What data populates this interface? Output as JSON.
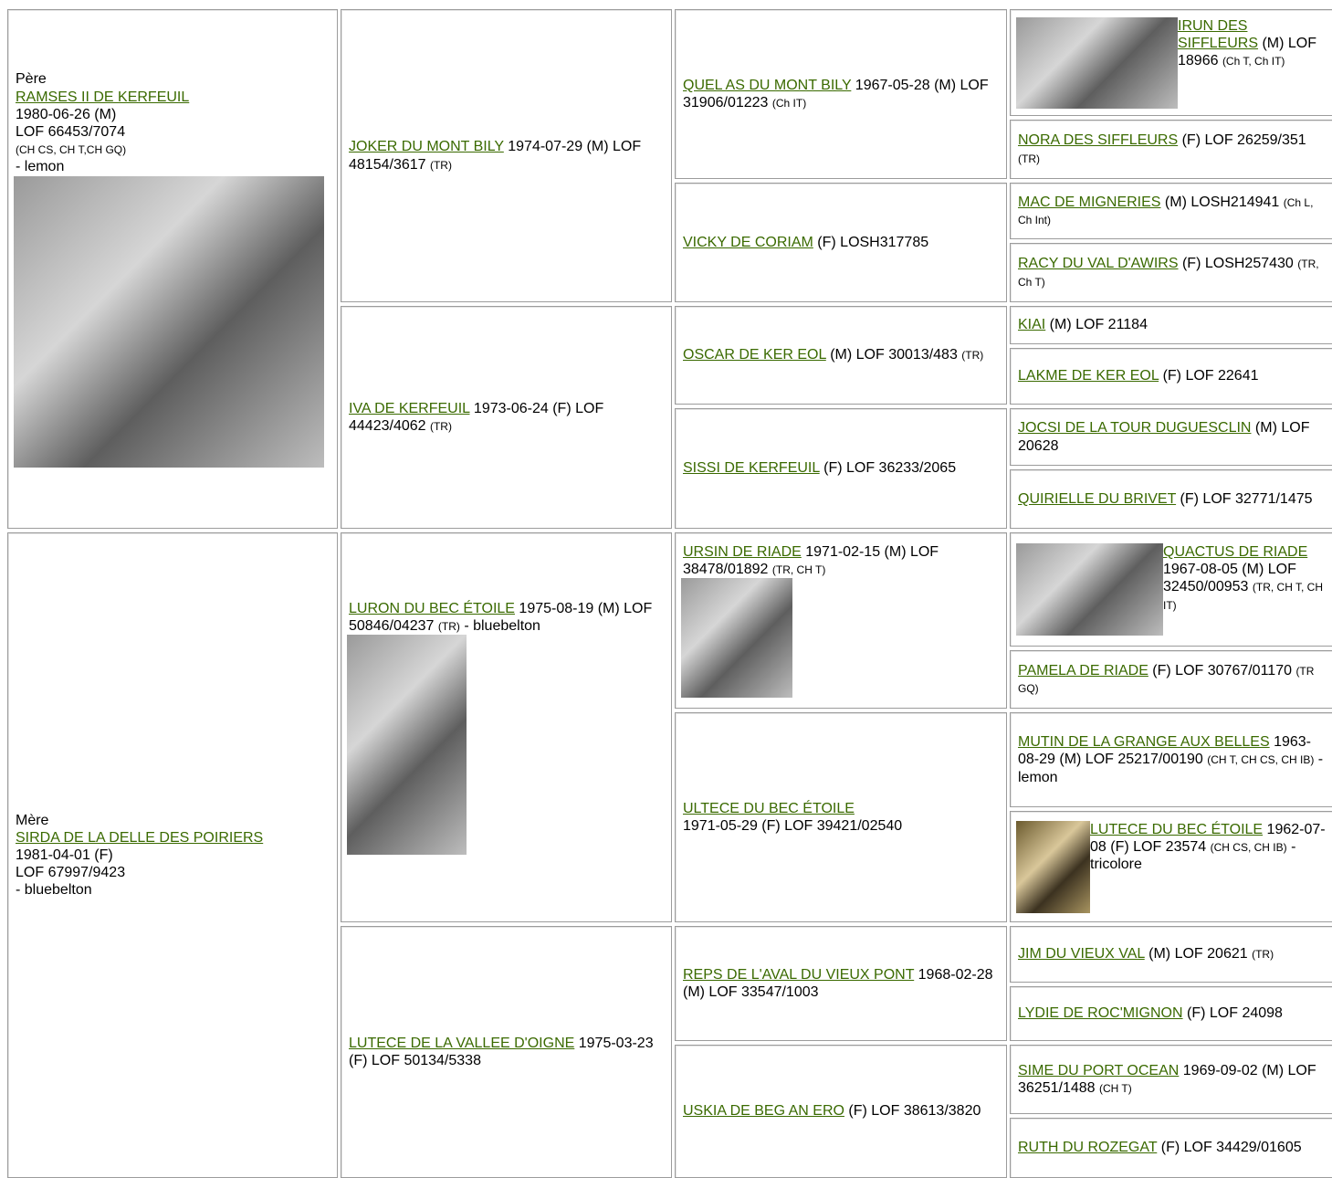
{
  "pedigree": [
    {
      "lines": [
        [
          {
            "text": "Père"
          }
        ],
        [
          {
            "text": "RAMSES II DE KERFEUIL",
            "style": "link"
          }
        ],
        [
          {
            "text": "1980-06-26 (M)"
          }
        ],
        [
          {
            "text": "LOF 66453/7074"
          }
        ],
        [
          {
            "text": "(CH CS, CH T,CH GQ)",
            "style": "small"
          }
        ],
        [
          {
            "text": "- lemon"
          }
        ]
      ],
      "parents": [
        {
          "lines": [
            [
              {
                "text": "JOKER DU MONT BILY",
                "style": "link"
              },
              {
                "text": " 1974-07-29 (M) LOF 48154/3617 "
              },
              {
                "text": "(TR)",
                "style": "small"
              }
            ]
          ],
          "parents": [
            {
              "lines": [
                [
                  {
                    "text": "QUEL AS DU MONT BILY",
                    "style": "link"
                  },
                  {
                    "text": " 1967-05-28 (M) LOF 31906/01223 "
                  },
                  {
                    "text": "(Ch IT)",
                    "style": "small"
                  }
                ]
              ],
              "parents": [
                {
                  "lines": [
                    [
                      {
                        "text": "IRUN DES SIFFLEURS",
                        "style": "link"
                      },
                      {
                        "text": " (M) LOF 18966 "
                      },
                      {
                        "text": "(Ch T, Ch IT)",
                        "style": "small"
                      }
                    ]
                  ]
                },
                {
                  "lines": [
                    [
                      {
                        "text": "NORA DES SIFFLEURS",
                        "style": "link"
                      },
                      {
                        "text": " (F) LOF 26259/351 "
                      },
                      {
                        "text": "(TR)",
                        "style": "small"
                      }
                    ]
                  ]
                }
              ]
            },
            {
              "lines": [
                [
                  {
                    "text": "VICKY DE CORIAM",
                    "style": "link"
                  },
                  {
                    "text": " (F) LOSH317785"
                  }
                ]
              ],
              "parents": [
                {
                  "lines": [
                    [
                      {
                        "text": "MAC DE MIGNERIES",
                        "style": "link"
                      },
                      {
                        "text": " (M) LOSH214941 "
                      },
                      {
                        "text": "(Ch L, Ch Int)",
                        "style": "small"
                      }
                    ]
                  ]
                },
                {
                  "lines": [
                    [
                      {
                        "text": "RACY DU VAL D'AWIRS",
                        "style": "link"
                      },
                      {
                        "text": " (F) LOSH257430 "
                      },
                      {
                        "text": "(TR, Ch T)",
                        "style": "small"
                      }
                    ]
                  ]
                }
              ]
            }
          ]
        },
        {
          "lines": [
            [
              {
                "text": "IVA DE KERFEUIL",
                "style": "link"
              },
              {
                "text": " 1973-06-24 (F) LOF 44423/4062 "
              },
              {
                "text": "(TR)",
                "style": "small"
              }
            ]
          ],
          "parents": [
            {
              "lines": [
                [
                  {
                    "text": "OSCAR DE KER EOL",
                    "style": "link"
                  },
                  {
                    "text": " (M) LOF 30013/483 "
                  },
                  {
                    "text": "(TR)",
                    "style": "small"
                  }
                ]
              ],
              "parents": [
                {
                  "lines": [
                    [
                      {
                        "text": "KIAI",
                        "style": "link"
                      },
                      {
                        "text": " (M) LOF 21184"
                      }
                    ]
                  ]
                },
                {
                  "lines": [
                    [
                      {
                        "text": "LAKME DE KER EOL",
                        "style": "link"
                      },
                      {
                        "text": " (F) LOF 22641"
                      }
                    ]
                  ]
                }
              ]
            },
            {
              "lines": [
                [
                  {
                    "text": "SISSI DE KERFEUIL",
                    "style": "link"
                  },
                  {
                    "text": " (F) LOF 36233/2065"
                  }
                ]
              ],
              "parents": [
                {
                  "lines": [
                    [
                      {
                        "text": "JOCSI DE LA TOUR DUGUESCLIN",
                        "style": "link"
                      },
                      {
                        "text": " (M) LOF 20628"
                      }
                    ]
                  ]
                },
                {
                  "lines": [
                    [
                      {
                        "text": "QUIRIELLE DU BRIVET",
                        "style": "link"
                      },
                      {
                        "text": " (F) LOF 32771/1475"
                      }
                    ]
                  ]
                }
              ]
            }
          ]
        }
      ]
    },
    {
      "lines": [
        [
          {
            "text": "Mère"
          }
        ],
        [
          {
            "text": "SIRDA DE LA DELLE DES POIRIERS",
            "style": "link"
          }
        ],
        [
          {
            "text": "1981-04-01 (F)"
          }
        ],
        [
          {
            "text": "LOF 67997/9423"
          }
        ],
        [
          {
            "text": "- bluebelton"
          }
        ]
      ],
      "parents": [
        {
          "lines": [
            [
              {
                "text": "LURON DU BEC ÉTOILE",
                "style": "link"
              },
              {
                "text": " 1975-08-19 (M) LOF 50846/04237 "
              },
              {
                "text": "(TR)",
                "style": "small"
              },
              {
                "text": " - bluebelton"
              }
            ]
          ],
          "parents": [
            {
              "lines": [
                [
                  {
                    "text": "URSIN DE RIADE",
                    "style": "link"
                  },
                  {
                    "text": " 1971-02-15 (M) LOF 38478/01892 "
                  },
                  {
                    "text": "(TR, CH T)",
                    "style": "small"
                  }
                ]
              ],
              "parents": [
                {
                  "lines": [
                    [
                      {
                        "text": "QUACTUS DE RIADE",
                        "style": "link"
                      },
                      {
                        "text": " 1967-08-05 (M) LOF 32450/00953 "
                      },
                      {
                        "text": "(TR, CH T, CH IT)",
                        "style": "small"
                      }
                    ]
                  ]
                },
                {
                  "lines": [
                    [
                      {
                        "text": "PAMELA DE RIADE",
                        "style": "link"
                      },
                      {
                        "text": " (F) LOF 30767/01170 "
                      },
                      {
                        "text": "(TR GQ)",
                        "style": "small"
                      }
                    ]
                  ]
                }
              ]
            },
            {
              "lines": [
                [
                  {
                    "text": "ULTECE DU BEC ÉTOILE",
                    "style": "link"
                  }
                ],
                [
                  {
                    "text": "1971-05-29 (F) LOF 39421/02540"
                  }
                ]
              ],
              "parents": [
                {
                  "lines": [
                    [
                      {
                        "text": "MUTIN DE LA GRANGE AUX BELLES",
                        "style": "link"
                      },
                      {
                        "text": " 1963-08-29 (M) LOF 25217/00190 "
                      },
                      {
                        "text": "(CH T, CH CS, CH IB)",
                        "style": "small"
                      },
                      {
                        "text": " - lemon"
                      }
                    ]
                  ]
                },
                {
                  "lines": [
                    [
                      {
                        "text": "LUTECE DU BEC ÉTOILE",
                        "style": "link"
                      },
                      {
                        "text": " 1962-07-08 (F) LOF 23574 "
                      },
                      {
                        "text": "(CH CS, CH IB)",
                        "style": "small"
                      },
                      {
                        "text": " - tricolore"
                      }
                    ]
                  ]
                }
              ]
            }
          ]
        },
        {
          "lines": [
            [
              {
                "text": "LUTECE DE LA VALLEE D'OIGNE",
                "style": "link"
              },
              {
                "text": " 1975-03-23 (F) LOF 50134/5338"
              }
            ]
          ],
          "parents": [
            {
              "lines": [
                [
                  {
                    "text": "REPS DE L'AVAL DU VIEUX PONT",
                    "style": "link"
                  },
                  {
                    "text": " 1968-02-28 (M) LOF 33547/1003"
                  }
                ]
              ],
              "parents": [
                {
                  "lines": [
                    [
                      {
                        "text": "JIM DU VIEUX VAL",
                        "style": "link"
                      },
                      {
                        "text": " (M) LOF 20621 "
                      },
                      {
                        "text": "(TR)",
                        "style": "small"
                      }
                    ]
                  ]
                },
                {
                  "lines": [
                    [
                      {
                        "text": "LYDIE DE ROC'MIGNON",
                        "style": "link"
                      },
                      {
                        "text": " (F) LOF 24098"
                      }
                    ]
                  ]
                }
              ]
            },
            {
              "lines": [
                [
                  {
                    "text": "USKIA DE BEG AN ERO",
                    "style": "link"
                  },
                  {
                    "text": " (F) LOF 38613/3820"
                  }
                ]
              ],
              "parents": [
                {
                  "lines": [
                    [
                      {
                        "text": "SIME DU PORT OCEAN",
                        "style": "link"
                      },
                      {
                        "text": " 1969-09-02 (M) LOF 36251/1488 "
                      },
                      {
                        "text": "(CH T)",
                        "style": "small"
                      }
                    ]
                  ]
                },
                {
                  "lines": [
                    [
                      {
                        "text": "RUTH DU ROZEGAT",
                        "style": "link"
                      },
                      {
                        "text": " (F) LOF 34429/01605"
                      }
                    ]
                  ]
                }
              ]
            }
          ]
        }
      ]
    }
  ]
}
